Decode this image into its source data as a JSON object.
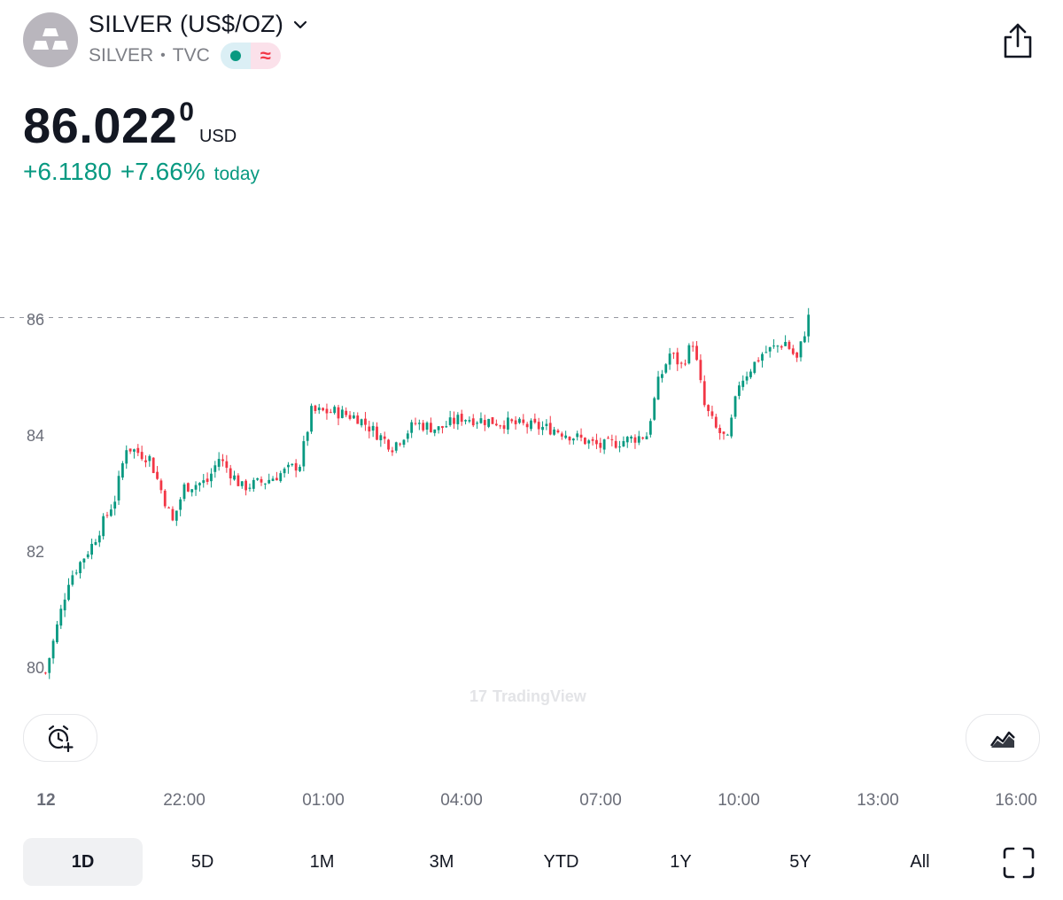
{
  "header": {
    "symbol_name": "SILVER (US$/OZ)",
    "ticker": "SILVER",
    "separator": "•",
    "exchange": "TVC",
    "status_open_color": "#089981",
    "status_delay_glyph": "≈",
    "icons": [
      "gold-bars-icon",
      "chevron-down-icon",
      "share-icon"
    ]
  },
  "quote": {
    "price": "86.022",
    "price_sup": "0",
    "currency": "USD",
    "change_abs": "+6.1180",
    "change_pct": "+7.66%",
    "change_label": "today",
    "change_color": "#089981"
  },
  "chart_data": {
    "type": "candlestick",
    "y_ticks": [
      "86",
      "84",
      "82",
      "80"
    ],
    "x_ticks": [
      "12",
      "22:00",
      "01:00",
      "04:00",
      "07:00",
      "10:00",
      "13:00",
      "16:00"
    ],
    "last_price_line": 86.022,
    "up_color": "#089981",
    "down_color": "#f23645",
    "ylim": [
      79.8,
      86.5
    ],
    "path": [
      [
        "19:00",
        79.9
      ],
      [
        "19:30",
        81.5
      ],
      [
        "20:00",
        82.1
      ],
      [
        "20:30",
        82.9
      ],
      [
        "20:45",
        83.8
      ],
      [
        "21:15",
        83.6
      ],
      [
        "21:45",
        82.5
      ],
      [
        "22:00",
        83.1
      ],
      [
        "22:30",
        83.2
      ],
      [
        "22:45",
        83.6
      ],
      [
        "23:15",
        83.1
      ],
      [
        "23:45",
        83.2
      ],
      [
        "00:30",
        83.5
      ],
      [
        "00:45",
        84.4
      ],
      [
        "01:15",
        84.4
      ],
      [
        "01:45",
        84.3
      ],
      [
        "02:30",
        83.8
      ],
      [
        "03:00",
        84.2
      ],
      [
        "03:30",
        84.1
      ],
      [
        "04:00",
        84.3
      ],
      [
        "05:00",
        84.2
      ],
      [
        "06:00",
        84.1
      ],
      [
        "07:00",
        83.8
      ],
      [
        "07:30",
        83.9
      ],
      [
        "08:00",
        84.0
      ],
      [
        "08:15",
        84.9
      ],
      [
        "08:30",
        85.4
      ],
      [
        "08:45",
        85.2
      ],
      [
        "09:00",
        85.6
      ],
      [
        "09:15",
        84.5
      ],
      [
        "09:30",
        84.1
      ],
      [
        "09:45",
        83.9
      ],
      [
        "10:00",
        84.9
      ],
      [
        "10:30",
        85.4
      ],
      [
        "11:00",
        85.6
      ],
      [
        "11:15",
        85.3
      ],
      [
        "11:30",
        86.02
      ]
    ]
  },
  "watermark": {
    "logo_glyph": "17",
    "text": "TradingView"
  },
  "tools": {
    "alert_icon": "alarm-plus-icon",
    "indicator_icon": "chart-style-icon"
  },
  "ranges": {
    "items": [
      "1D",
      "5D",
      "1M",
      "3M",
      "YTD",
      "1Y",
      "5Y",
      "All"
    ],
    "active": "1D",
    "fullscreen_icon": "fullscreen-icon"
  }
}
